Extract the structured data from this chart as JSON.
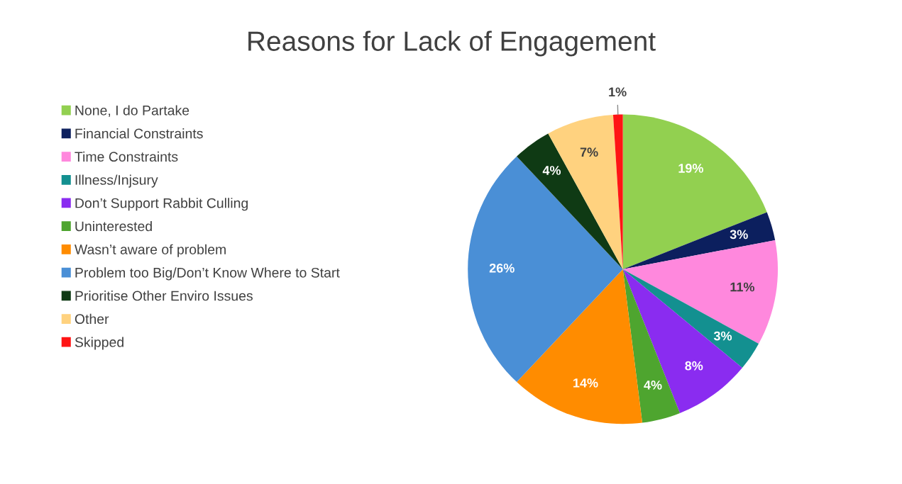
{
  "chart_data": {
    "type": "pie",
    "title": "Reasons for Lack of Engagement",
    "categories": [
      "None, I do Partake",
      "Financial Constraints",
      "Time Constraints",
      "Illness/Injsury",
      "Don’t Support Rabbit Culling",
      "Uninterested",
      "Wasn’t aware of problem",
      "Problem too Big/Don’t Know Where to Start",
      "Prioritise Other Enviro Issues",
      "Other",
      "Skipped"
    ],
    "values": [
      19,
      3,
      11,
      3,
      8,
      4,
      14,
      26,
      4,
      7,
      1
    ],
    "value_labels": [
      "19%",
      "3%",
      "11%",
      "3%",
      "8%",
      "4%",
      "14%",
      "26%",
      "4%",
      "7%",
      "1%"
    ],
    "colors": [
      "#92d050",
      "#0c1f5e",
      "#ff88dd",
      "#139090",
      "#8a2cf0",
      "#4ea52f",
      "#ff8c00",
      "#4a8fd6",
      "#0f3a14",
      "#ffd27f",
      "#ff1414"
    ],
    "legend": "left"
  }
}
